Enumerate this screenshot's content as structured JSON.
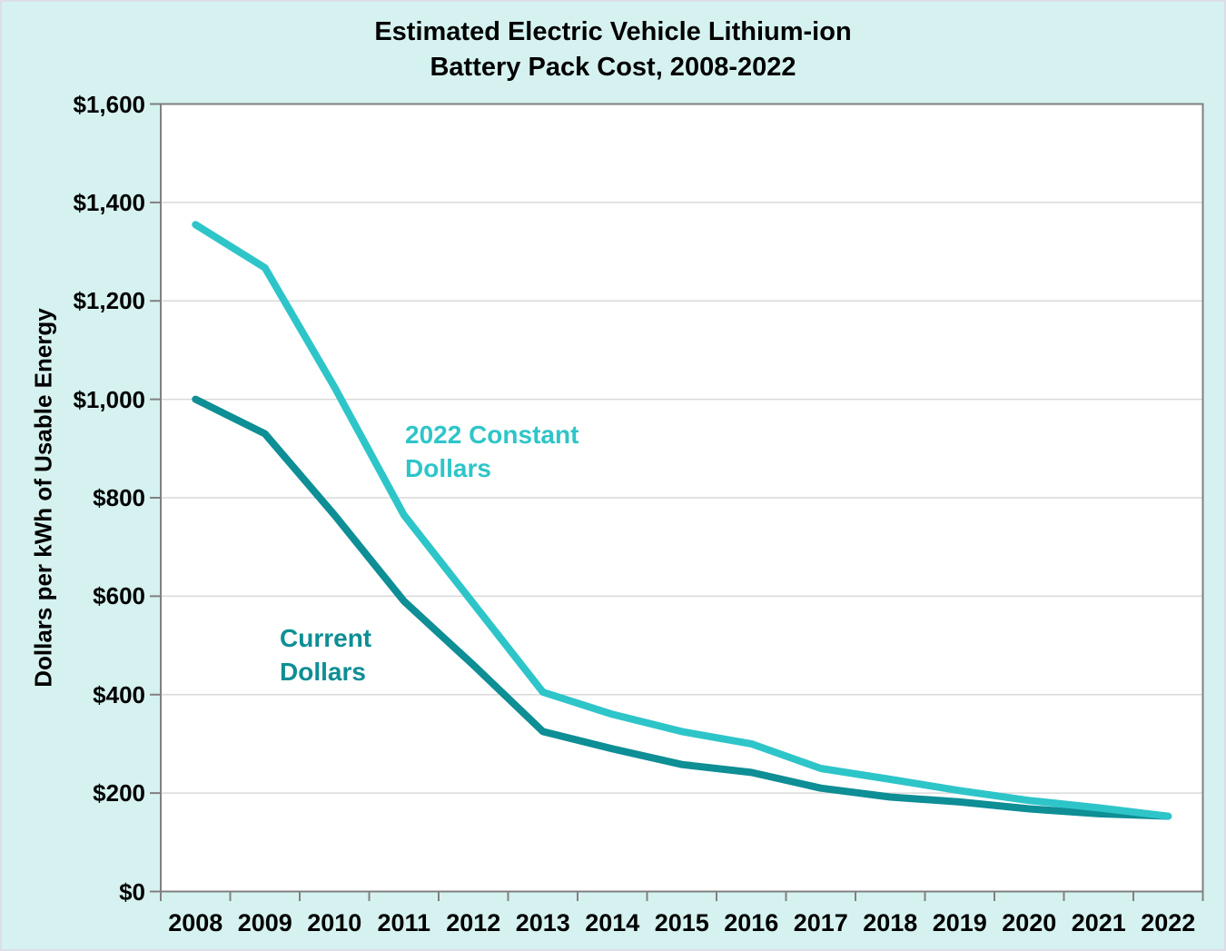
{
  "title": "Estimated Electric Vehicle Lithium-ion\nBattery Pack Cost, 2008-2022",
  "chart_data": {
    "type": "line",
    "title": "Estimated Electric Vehicle Lithium-ion Battery Pack Cost, 2008-2022",
    "xlabel": "",
    "ylabel": "Dollars per kWh of Usable Energy",
    "categories": [
      "2008",
      "2009",
      "2010",
      "2011",
      "2012",
      "2013",
      "2014",
      "2015",
      "2016",
      "2017",
      "2018",
      "2019",
      "2020",
      "2021",
      "2022"
    ],
    "ylim": [
      0,
      1600
    ],
    "y_tick_step": 200,
    "y_tick_labels": [
      "$0",
      "$200",
      "$400",
      "$600",
      "$800",
      "$1,000",
      "$1,200",
      "$1,400",
      "$1,600"
    ],
    "grid": "horizontal",
    "legend": "inline-annotations",
    "series": [
      {
        "name": "2022 Constant Dollars",
        "color": "#2ec5c9",
        "values": [
          1355,
          1267,
          1025,
          765,
          585,
          405,
          360,
          325,
          300,
          250,
          228,
          205,
          185,
          170,
          153
        ]
      },
      {
        "name": "Current Dollars",
        "color": "#0e8e95",
        "values": [
          1000,
          930,
          765,
          590,
          460,
          325,
          290,
          258,
          242,
          210,
          192,
          182,
          168,
          158,
          153
        ]
      }
    ],
    "annotations": [
      {
        "text": "2022 Constant\nDollars",
        "series": "2022 Constant Dollars",
        "color": "#2ec5c9"
      },
      {
        "text": "Current\nDollars",
        "series": "Current Dollars",
        "color": "#0e8e95"
      }
    ]
  },
  "colors": {
    "background": "#d5f2f0",
    "plot_background": "#ffffff",
    "gridline": "#d9d9d9",
    "axis": "#808080",
    "text": "#000000",
    "constant_series": "#2ec5c9",
    "current_series": "#0e8e95"
  }
}
